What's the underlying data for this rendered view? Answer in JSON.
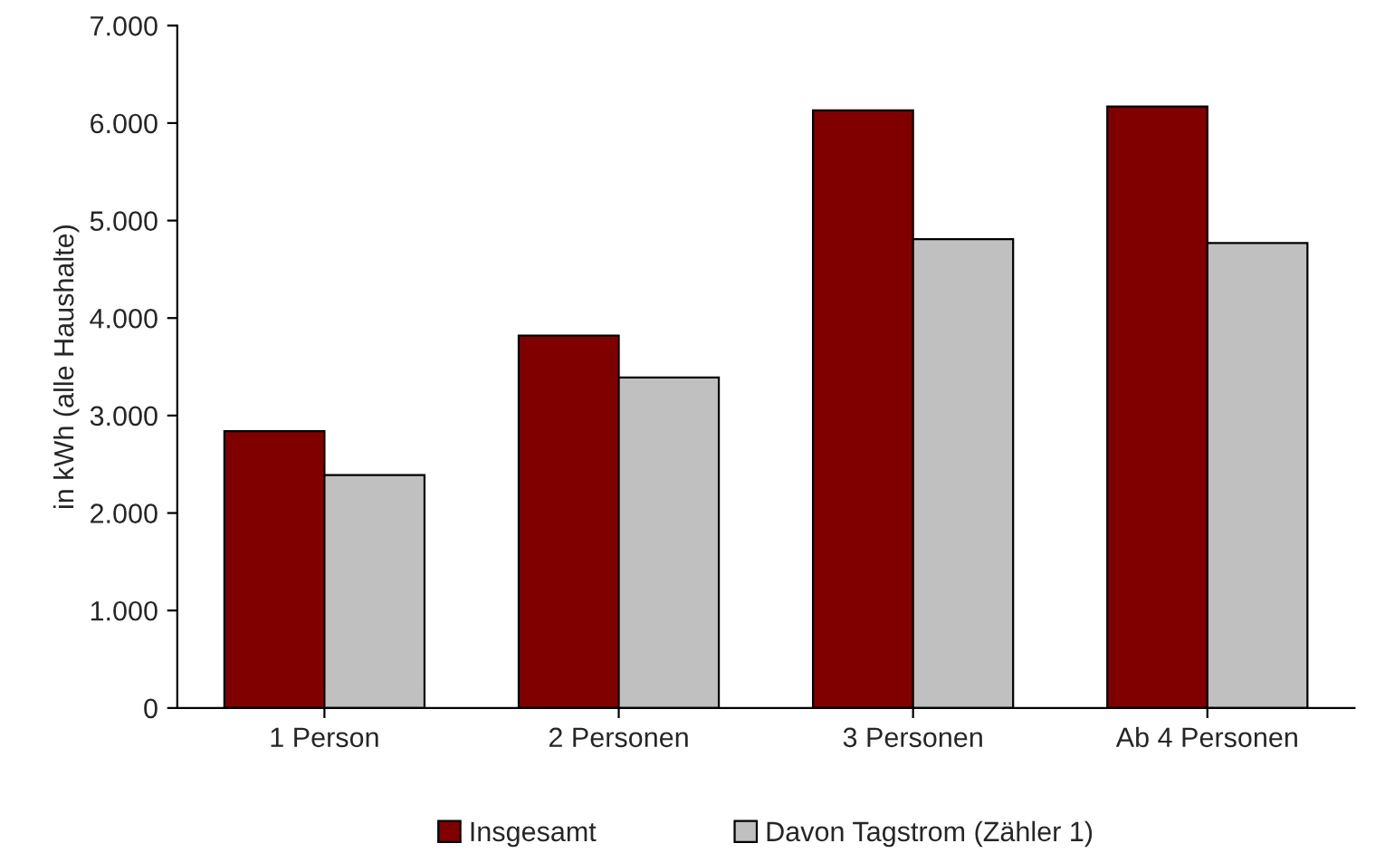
{
  "chart_data": {
    "type": "bar",
    "ylabel": "in kWh (alle Haushalte)",
    "categories": [
      "1 Person",
      "2 Personen",
      "3 Personen",
      "Ab 4 Personen"
    ],
    "series": [
      {
        "name": "Insgesamt",
        "color": "#800000",
        "values": [
          2840,
          3820,
          6130,
          6170
        ]
      },
      {
        "name": "Davon Tagstrom (Zähler 1)",
        "color": "#c0c0c0",
        "values": [
          2390,
          3390,
          4810,
          4770
        ]
      }
    ],
    "ylim": [
      0,
      7000
    ],
    "yticks": [
      0,
      {
        "value": 1000,
        "label": "1.000"
      },
      {
        "value": 2000,
        "label": "2.000"
      },
      {
        "value": 3000,
        "label": "3.000"
      },
      {
        "value": 4000,
        "label": "4.000"
      },
      {
        "value": 5000,
        "label": "5.000"
      },
      {
        "value": 6000,
        "label": "6.000"
      },
      {
        "value": 7000,
        "label": "7.000"
      }
    ],
    "grid": false,
    "legend": "bottom"
  }
}
